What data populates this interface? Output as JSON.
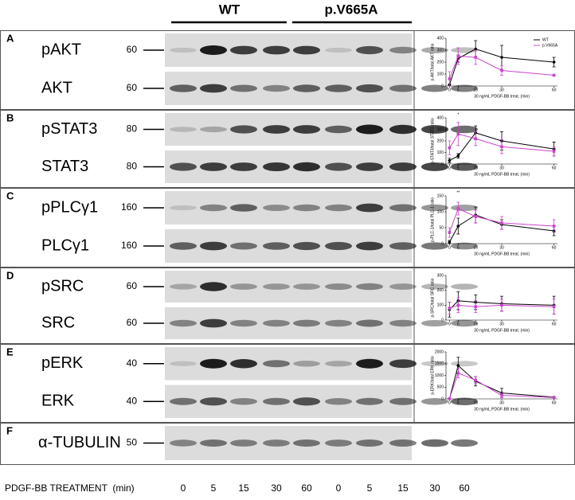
{
  "header": {
    "groups": [
      "WT",
      "p.V665A"
    ]
  },
  "panels": [
    {
      "letter": "A",
      "blots": [
        {
          "protein": "pAKT",
          "mw": "60"
        },
        {
          "protein": "AKT",
          "mw": "60"
        }
      ]
    },
    {
      "letter": "B",
      "blots": [
        {
          "protein": "pSTAT3",
          "mw": "80"
        },
        {
          "protein": "STAT3",
          "mw": "80"
        }
      ]
    },
    {
      "letter": "C",
      "blots": [
        {
          "protein": "pPLCγ1",
          "mw": "160"
        },
        {
          "protein": "PLCγ1",
          "mw": "160"
        }
      ]
    },
    {
      "letter": "D",
      "blots": [
        {
          "protein": "pSRC",
          "mw": "60"
        },
        {
          "protein": "SRC",
          "mw": "60"
        }
      ]
    },
    {
      "letter": "E",
      "blots": [
        {
          "protein": "pERK",
          "mw": "40"
        },
        {
          "protein": "ERK",
          "mw": "40"
        }
      ]
    },
    {
      "letter": "F",
      "blots": [
        {
          "protein": "α-TUBULIN",
          "mw": "50"
        }
      ]
    }
  ],
  "footer": {
    "label": "PDGF-BB TREATMENT  (min)",
    "lanes": [
      "0",
      "5",
      "15",
      "30",
      "60",
      "0",
      "5",
      "15",
      "30",
      "60"
    ]
  },
  "chart_data": [
    {
      "type": "line",
      "ylabel": "p-AKT/total AKT ratio",
      "xlabel": "30 ng/mL PDGF-BB treat. (min)",
      "x": [
        0,
        5,
        15,
        30,
        60
      ],
      "xlim": [
        -2,
        62
      ],
      "xticks": [
        0,
        5,
        15,
        30,
        60
      ],
      "ylim": [
        0,
        400
      ],
      "yticks": [
        0,
        100,
        200,
        300,
        400
      ],
      "legend": true,
      "legend_position": "top-right",
      "series": [
        {
          "name": "WT",
          "color": "#000000",
          "values": [
            10,
            230,
            310,
            240,
            200
          ],
          "errors": [
            5,
            30,
            70,
            100,
            40
          ]
        },
        {
          "name": "p.V665A",
          "color": "#cc44cc",
          "values": [
            60,
            250,
            240,
            130,
            90
          ],
          "errors": [
            60,
            70,
            60,
            40,
            5
          ]
        }
      ]
    },
    {
      "type": "line",
      "ylabel": "p-STAT3/total STAT3 ratio",
      "xlabel": "30 ng/mL PDGF-BB treat. (min)",
      "x": [
        0,
        5,
        15,
        30,
        60
      ],
      "xlim": [
        -2,
        62
      ],
      "xticks": [
        0,
        5,
        15,
        30,
        60
      ],
      "ylim": [
        0,
        400
      ],
      "yticks": [
        0,
        100,
        200,
        300,
        400
      ],
      "legend": false,
      "annotations": [
        {
          "x": 5,
          "text": "*"
        }
      ],
      "series": [
        {
          "name": "WT",
          "color": "#000000",
          "values": [
            30,
            70,
            270,
            200,
            130
          ],
          "errors": [
            20,
            20,
            60,
            80,
            60
          ]
        },
        {
          "name": "p.V665A",
          "color": "#cc44cc",
          "values": [
            140,
            260,
            220,
            150,
            110
          ],
          "errors": [
            60,
            100,
            60,
            60,
            40
          ]
        }
      ]
    },
    {
      "type": "line",
      "ylabel": "p-PLC-1/total PLC-1 ratio",
      "xlabel": "30 ng/mL PDGF-BB treat. (min)",
      "x": [
        0,
        5,
        15,
        30,
        60
      ],
      "xlim": [
        -2,
        62
      ],
      "xticks": [
        0,
        5,
        15,
        30,
        60
      ],
      "ylim": [
        0,
        150
      ],
      "yticks": [
        0,
        50,
        100,
        150
      ],
      "legend": false,
      "annotations": [
        {
          "x": 5,
          "text": "**"
        }
      ],
      "series": [
        {
          "name": "WT",
          "color": "#000000",
          "values": [
            5,
            55,
            90,
            60,
            40
          ],
          "errors": [
            5,
            25,
            25,
            15,
            15
          ]
        },
        {
          "name": "p.V665A",
          "color": "#cc44cc",
          "values": [
            35,
            110,
            85,
            65,
            55
          ],
          "errors": [
            15,
            20,
            20,
            20,
            20
          ]
        }
      ]
    },
    {
      "type": "line",
      "ylabel": "p-SRC/total SRC ratio",
      "xlabel": "30 ng/mL PDGF-BB treat. (min)",
      "x": [
        0,
        5,
        15,
        30,
        60
      ],
      "xlim": [
        -2,
        62
      ],
      "xticks": [
        0,
        5,
        15,
        30,
        60
      ],
      "ylim": [
        0,
        300
      ],
      "yticks": [
        0,
        100,
        200,
        300
      ],
      "legend": false,
      "series": [
        {
          "name": "WT",
          "color": "#000000",
          "values": [
            70,
            130,
            120,
            110,
            100
          ],
          "errors": [
            50,
            60,
            50,
            50,
            60
          ]
        },
        {
          "name": "p.V665A",
          "color": "#cc44cc",
          "values": [
            80,
            100,
            90,
            100,
            90
          ],
          "errors": [
            40,
            50,
            40,
            40,
            50
          ]
        }
      ]
    },
    {
      "type": "line",
      "ylabel": "p-ERK/total ERK ratio",
      "xlabel": "30 ng/mL PDGF-BB treat. (min)",
      "x": [
        0,
        5,
        15,
        30,
        60
      ],
      "xlim": [
        -2,
        62
      ],
      "xticks": [
        0,
        5,
        15,
        30,
        60
      ],
      "ylim": [
        0,
        2000
      ],
      "yticks": [
        0,
        500,
        1000,
        1500,
        2000
      ],
      "legend": false,
      "series": [
        {
          "name": "WT",
          "color": "#000000",
          "values": [
            10,
            1420,
            750,
            250,
            70
          ],
          "errors": [
            10,
            350,
            200,
            200,
            20
          ]
        },
        {
          "name": "p.V665A",
          "color": "#cc44cc",
          "values": [
            10,
            1100,
            800,
            150,
            60
          ],
          "errors": [
            10,
            200,
            150,
            100,
            20
          ]
        }
      ]
    }
  ]
}
